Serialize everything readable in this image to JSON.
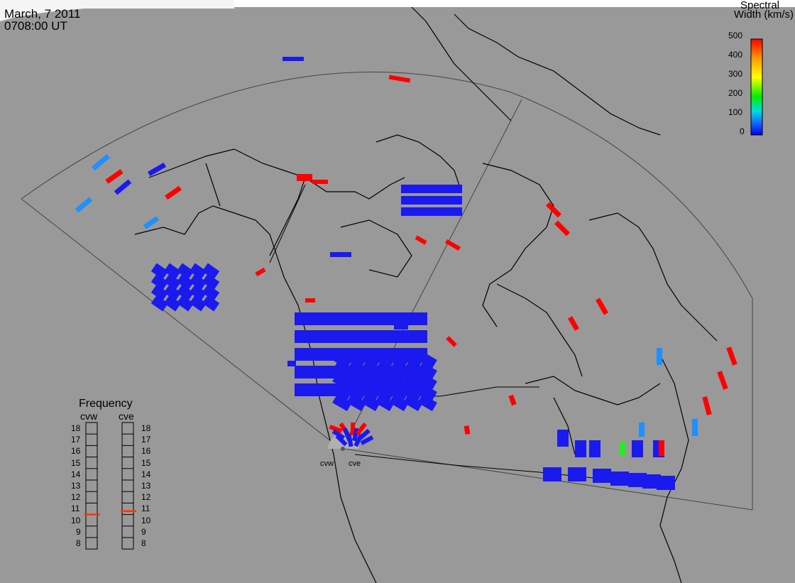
{
  "header": {
    "date": "March, 7 2011",
    "time": "0708:00 UT"
  },
  "colorbar": {
    "title_line1": "Spectral",
    "title_line2": "Width (km/s)",
    "ticks": [
      "500",
      "400",
      "300",
      "200",
      "100",
      "0"
    ],
    "stops": [
      "#ff0000",
      "#ff9900",
      "#ffff00",
      "#00ee00",
      "#00dddd",
      "#1166ff",
      "#0000ee"
    ]
  },
  "frequency": {
    "title": "Frequency",
    "radars": [
      "cvw",
      "cve"
    ],
    "levels": [
      "18",
      "17",
      "16",
      "15",
      "14",
      "13",
      "12",
      "11",
      "10",
      "9",
      "8"
    ],
    "cvw_value": 10.5,
    "cve_value": 10.8,
    "marker_color": "#ff3300"
  },
  "stations": {
    "west": "cvw",
    "east": "cve"
  },
  "colors": {
    "background": "#999999",
    "low": "#1a1aee",
    "high": "#ff0000",
    "mid": "#1e90ff",
    "green": "#22ee22"
  }
}
